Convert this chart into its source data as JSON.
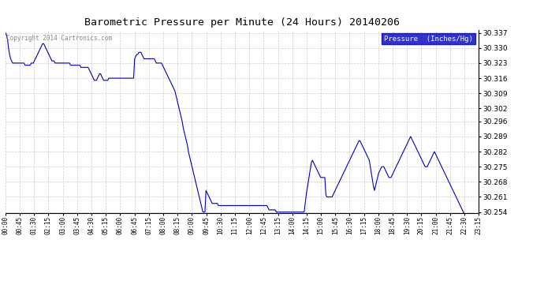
{
  "title": "Barometric Pressure per Minute (24 Hours) 20140206",
  "copyright": "Copyright 2014 Cartronics.com",
  "line_color": "#0000BB",
  "background_color": "#ffffff",
  "plot_bg_color": "#ffffff",
  "legend_bg_color": "#0000BB",
  "legend_text_color": "#ffffff",
  "grid_color": "#cccccc",
  "ylim": [
    30.2535,
    30.3385
  ],
  "yticks": [
    30.254,
    30.261,
    30.268,
    30.275,
    30.282,
    30.289,
    30.296,
    30.302,
    30.309,
    30.316,
    30.323,
    30.33,
    30.337
  ],
  "xtick_labels": [
    "00:00",
    "00:45",
    "01:30",
    "02:15",
    "03:00",
    "03:45",
    "04:30",
    "05:15",
    "06:00",
    "06:45",
    "07:15",
    "08:00",
    "08:15",
    "09:00",
    "09:45",
    "10:30",
    "11:15",
    "12:00",
    "12:45",
    "13:15",
    "14:00",
    "14:15",
    "15:00",
    "15:45",
    "16:30",
    "17:15",
    "18:00",
    "18:45",
    "19:30",
    "20:15",
    "21:00",
    "21:45",
    "22:30",
    "23:15"
  ],
  "pressure_values": [
    30.337,
    30.336,
    30.334,
    30.33,
    30.327,
    30.325,
    30.324,
    30.323,
    30.323,
    30.323,
    30.323,
    30.323,
    30.323,
    30.323,
    30.323,
    30.323,
    30.323,
    30.323,
    30.323,
    30.322,
    30.322,
    30.322,
    30.322,
    30.322,
    30.322,
    30.323,
    30.323,
    30.323,
    30.324,
    30.325,
    30.326,
    30.327,
    30.328,
    30.329,
    30.33,
    30.331,
    30.332,
    30.332,
    30.331,
    30.33,
    30.329,
    30.328,
    30.327,
    30.326,
    30.325,
    30.324,
    30.324,
    30.324,
    30.323,
    30.323,
    30.323,
    30.323,
    30.323,
    30.323,
    30.323,
    30.323,
    30.323,
    30.323,
    30.323,
    30.323,
    30.323,
    30.323,
    30.323,
    30.322,
    30.322,
    30.322,
    30.322,
    30.322,
    30.322,
    30.322,
    30.322,
    30.322,
    30.322,
    30.321,
    30.321,
    30.321,
    30.321,
    30.321,
    30.321,
    30.321,
    30.321,
    30.32,
    30.319,
    30.318,
    30.317,
    30.316,
    30.315,
    30.315,
    30.315,
    30.316,
    30.317,
    30.318,
    30.318,
    30.317,
    30.316,
    30.315,
    30.315,
    30.315,
    30.315,
    30.315,
    30.316,
    30.316,
    30.316,
    30.316,
    30.316,
    30.316,
    30.316,
    30.316,
    30.316,
    30.316,
    30.316,
    30.316,
    30.316,
    30.316,
    30.316,
    30.316,
    30.316,
    30.316,
    30.316,
    30.316,
    30.316,
    30.316,
    30.316,
    30.316,
    30.316,
    30.325,
    30.326,
    30.327,
    30.327,
    30.328,
    30.328,
    30.328,
    30.327,
    30.326,
    30.325,
    30.325,
    30.325,
    30.325,
    30.325,
    30.325,
    30.325,
    30.325,
    30.325,
    30.325,
    30.325,
    30.324,
    30.323,
    30.323,
    30.323,
    30.323,
    30.323,
    30.323,
    30.322,
    30.321,
    30.32,
    30.319,
    30.318,
    30.317,
    30.316,
    30.315,
    30.314,
    30.313,
    30.312,
    30.311,
    30.31,
    30.308,
    30.306,
    30.304,
    30.302,
    30.3,
    30.298,
    30.296,
    30.293,
    30.291,
    30.289,
    30.287,
    30.285,
    30.282,
    30.28,
    30.278,
    30.276,
    30.274,
    30.272,
    30.27,
    30.268,
    30.266,
    30.264,
    30.262,
    30.26,
    30.258,
    30.256,
    30.254,
    30.254,
    30.254,
    30.264,
    30.263,
    30.262,
    30.261,
    30.26,
    30.259,
    30.258,
    30.258,
    30.258,
    30.258,
    30.258,
    30.258,
    30.257,
    30.257,
    30.257,
    30.257,
    30.257,
    30.257,
    30.257,
    30.257,
    30.257,
    30.257,
    30.257,
    30.257,
    30.257,
    30.257,
    30.257,
    30.257,
    30.257,
    30.257,
    30.257,
    30.257,
    30.257,
    30.257,
    30.257,
    30.257,
    30.257,
    30.257,
    30.257,
    30.257,
    30.257,
    30.257,
    30.257,
    30.257,
    30.257,
    30.257,
    30.257,
    30.257,
    30.257,
    30.257,
    30.257,
    30.257,
    30.257,
    30.257,
    30.257,
    30.257,
    30.257,
    30.257,
    30.257,
    30.257,
    30.256,
    30.255,
    30.255,
    30.255,
    30.255,
    30.255,
    30.255,
    30.255,
    30.254,
    30.254,
    30.254,
    30.254,
    30.254,
    30.254,
    30.254,
    30.254,
    30.254,
    30.254,
    30.254,
    30.254,
    30.254,
    30.254,
    30.254,
    30.254,
    30.254,
    30.254,
    30.254,
    30.254,
    30.254,
    30.254,
    30.254,
    30.254,
    30.254,
    30.254,
    30.254,
    30.254,
    30.258,
    30.262,
    30.265,
    30.268,
    30.271,
    30.274,
    30.277,
    30.278,
    30.277,
    30.276,
    30.275,
    30.274,
    30.273,
    30.272,
    30.271,
    30.27,
    30.27,
    30.27,
    30.27,
    30.27,
    30.262,
    30.261,
    30.261,
    30.261,
    30.261,
    30.261,
    30.261,
    30.262,
    30.263,
    30.264,
    30.265,
    30.266,
    30.267,
    30.268,
    30.269,
    30.27,
    30.271,
    30.272,
    30.273,
    30.274,
    30.275,
    30.276,
    30.277,
    30.278,
    30.279,
    30.28,
    30.281,
    30.282,
    30.283,
    30.284,
    30.285,
    30.286,
    30.287,
    30.287,
    30.286,
    30.285,
    30.284,
    30.283,
    30.282,
    30.281,
    30.28,
    30.279,
    30.278,
    30.275,
    30.272,
    30.269,
    30.266,
    30.264,
    30.266,
    30.268,
    30.27,
    30.272,
    30.273,
    30.274,
    30.275,
    30.275,
    30.275,
    30.274,
    30.273,
    30.272,
    30.271,
    30.27,
    30.27,
    30.27,
    30.271,
    30.272,
    30.273,
    30.274,
    30.275,
    30.276,
    30.277,
    30.278,
    30.279,
    30.28,
    30.281,
    30.282,
    30.283,
    30.284,
    30.285,
    30.286,
    30.287,
    30.288,
    30.289,
    30.288,
    30.287,
    30.286,
    30.285,
    30.284,
    30.283,
    30.282,
    30.281,
    30.28,
    30.279,
    30.278,
    30.277,
    30.276,
    30.275,
    30.275,
    30.275,
    30.276,
    30.277,
    30.278,
    30.279,
    30.28,
    30.281,
    30.282,
    30.281,
    30.28,
    30.279,
    30.278,
    30.277,
    30.276,
    30.275,
    30.274,
    30.273,
    30.272,
    30.271,
    30.27,
    30.269,
    30.268,
    30.267,
    30.266,
    30.265,
    30.264,
    30.263,
    30.262,
    30.261,
    30.26,
    30.259,
    30.258,
    30.257,
    30.256,
    30.255,
    30.254,
    30.253
  ]
}
